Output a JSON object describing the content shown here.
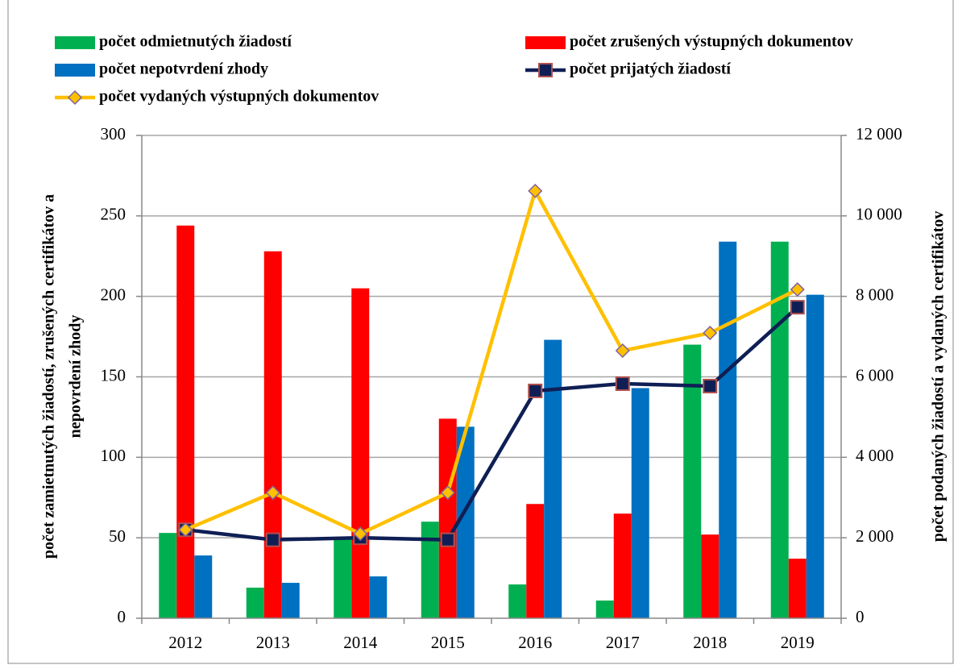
{
  "chart_data": {
    "type": "bar",
    "categories": [
      "2012",
      "2013",
      "2014",
      "2015",
      "2016",
      "2017",
      "2018",
      "2019"
    ],
    "series": [
      {
        "name": "počet odmietnutých žiadostí",
        "type": "bar",
        "color": "#00b050",
        "values": [
          53,
          19,
          50,
          60,
          21,
          11,
          170,
          234
        ]
      },
      {
        "name": "počet zrušených výstupných dokumentov",
        "type": "bar",
        "color": "#ff0000",
        "values": [
          244,
          228,
          205,
          124,
          71,
          65,
          52,
          37
        ]
      },
      {
        "name": "počet nepotvrdení zhody",
        "type": "bar",
        "color": "#0070c0",
        "values": [
          39,
          22,
          26,
          119,
          173,
          143,
          234,
          201
        ]
      },
      {
        "name": "počet prijatých žiadostí",
        "type": "line",
        "axis": "y2",
        "color": "#0f1f55",
        "marker": "square",
        "marker_edge": "#b0504d",
        "values": [
          2200,
          1950,
          2000,
          1950,
          5650,
          5830,
          5770,
          7730
        ]
      },
      {
        "name": "počet vydaných výstupných dokumentov",
        "type": "line",
        "axis": "y2",
        "color": "#ffc000",
        "marker": "diamond",
        "marker_edge": "#8064a2",
        "values": [
          2200,
          3120,
          2100,
          3120,
          10620,
          6650,
          7090,
          8170
        ]
      }
    ],
    "ylabel": [
      "počet zamietnutých žiadostí, zrušených certifikátov a",
      "nepovrdení zhody"
    ],
    "y2label": "počet podaných žiadostí a vydaných certifikátov",
    "ylim": [
      0,
      300
    ],
    "yticks": [
      0,
      50,
      100,
      150,
      200,
      250,
      300
    ],
    "y2lim": [
      0,
      12000
    ],
    "y2ticks": [
      0,
      {
        "value": 2000,
        "label": "2 000"
      },
      {
        "value": 4000,
        "label": "4 000"
      },
      {
        "value": 6000,
        "label": "6 000"
      },
      {
        "value": 8000,
        "label": "8 000"
      },
      {
        "value": 10000,
        "label": "10 000"
      },
      {
        "value": 12000,
        "label": "12 000"
      }
    ],
    "grid": true
  }
}
